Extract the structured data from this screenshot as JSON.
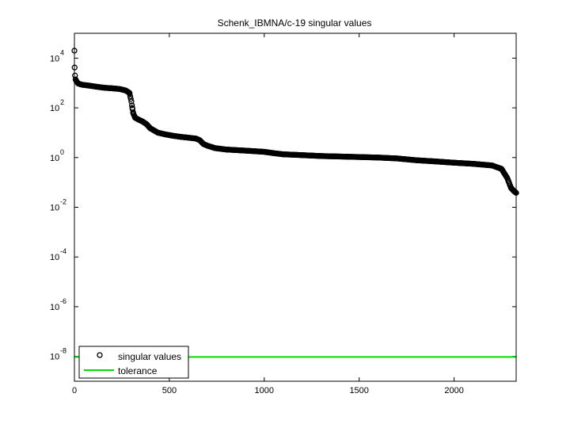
{
  "chart_data": {
    "type": "scatter",
    "title": "Schenk_IBMNA/c-19 singular values",
    "xlabel": "",
    "ylabel": "",
    "xlim": [
      0,
      2327
    ],
    "ylim_log10": [
      -9,
      5
    ],
    "y_scale": "log",
    "grid": false,
    "legend_position": "bottom-left",
    "x_ticks": [
      {
        "value": 0,
        "label": "0"
      },
      {
        "value": 500,
        "label": "500"
      },
      {
        "value": 1000,
        "label": "1000"
      },
      {
        "value": 1500,
        "label": "1500"
      },
      {
        "value": 2000,
        "label": "2000"
      }
    ],
    "y_ticks": [
      {
        "exp": 4,
        "base": "10",
        "sup": "4"
      },
      {
        "exp": 2,
        "base": "10",
        "sup": "2"
      },
      {
        "exp": 0,
        "base": "10",
        "sup": "0"
      },
      {
        "exp": -2,
        "base": "10",
        "sup": "-2"
      },
      {
        "exp": -4,
        "base": "10",
        "sup": "-4"
      },
      {
        "exp": -6,
        "base": "10",
        "sup": "-6"
      },
      {
        "exp": -8,
        "base": "10",
        "sup": "-8"
      }
    ],
    "series": [
      {
        "name": "singular values",
        "marker": "circle",
        "color": "#000000",
        "points": [
          [
            0,
            20000
          ],
          [
            1,
            4200
          ],
          [
            3,
            2000
          ],
          [
            6,
            1400
          ],
          [
            10,
            1200
          ],
          [
            20,
            950
          ],
          [
            40,
            850
          ],
          [
            80,
            780
          ],
          [
            120,
            700
          ],
          [
            160,
            640
          ],
          [
            200,
            610
          ],
          [
            240,
            570
          ],
          [
            270,
            500
          ],
          [
            290,
            400
          ],
          [
            300,
            180
          ],
          [
            305,
            100
          ],
          [
            310,
            60
          ],
          [
            320,
            40
          ],
          [
            340,
            33
          ],
          [
            360,
            28
          ],
          [
            380,
            22
          ],
          [
            400,
            15
          ],
          [
            440,
            10
          ],
          [
            480,
            8.5
          ],
          [
            520,
            7.5
          ],
          [
            560,
            6.8
          ],
          [
            600,
            6.3
          ],
          [
            640,
            5.8
          ],
          [
            660,
            5.0
          ],
          [
            680,
            3.5
          ],
          [
            700,
            3.0
          ],
          [
            740,
            2.4
          ],
          [
            800,
            2.1
          ],
          [
            900,
            1.9
          ],
          [
            1000,
            1.7
          ],
          [
            1050,
            1.5
          ],
          [
            1100,
            1.35
          ],
          [
            1200,
            1.25
          ],
          [
            1300,
            1.15
          ],
          [
            1400,
            1.1
          ],
          [
            1500,
            1.05
          ],
          [
            1600,
            1.0
          ],
          [
            1700,
            0.92
          ],
          [
            1800,
            0.78
          ],
          [
            1900,
            0.7
          ],
          [
            2000,
            0.62
          ],
          [
            2100,
            0.56
          ],
          [
            2200,
            0.48
          ],
          [
            2250,
            0.35
          ],
          [
            2280,
            0.15
          ],
          [
            2300,
            0.06
          ],
          [
            2315,
            0.045
          ],
          [
            2327,
            0.038
          ]
        ]
      },
      {
        "name": "tolerance",
        "marker": "line",
        "color": "#00dd00",
        "value": 9.5e-09
      }
    ]
  }
}
